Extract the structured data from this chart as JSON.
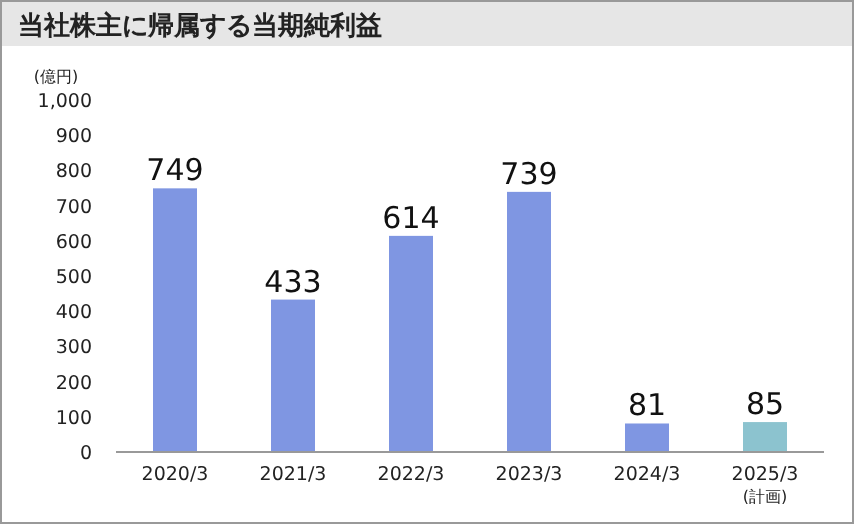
{
  "chart_data": {
    "type": "bar",
    "title": "当社株主に帰属する当期純利益",
    "ylabel": "(億円)",
    "categories": [
      "2020/3",
      "2021/3",
      "2022/3",
      "2023/3",
      "2024/3",
      "2025/3\n(計画)"
    ],
    "values": [
      749,
      433,
      614,
      739,
      81,
      85
    ],
    "colors": [
      "#7f96e2",
      "#7f96e2",
      "#7f96e2",
      "#7f96e2",
      "#7f96e2",
      "#8cc3cf"
    ],
    "ylim": [
      0,
      1000
    ],
    "yticks": [
      0,
      100,
      200,
      300,
      400,
      500,
      600,
      700,
      800,
      900,
      {
        "value": 1000,
        "label": "1,000"
      }
    ],
    "data_labels": true,
    "grid": false
  }
}
